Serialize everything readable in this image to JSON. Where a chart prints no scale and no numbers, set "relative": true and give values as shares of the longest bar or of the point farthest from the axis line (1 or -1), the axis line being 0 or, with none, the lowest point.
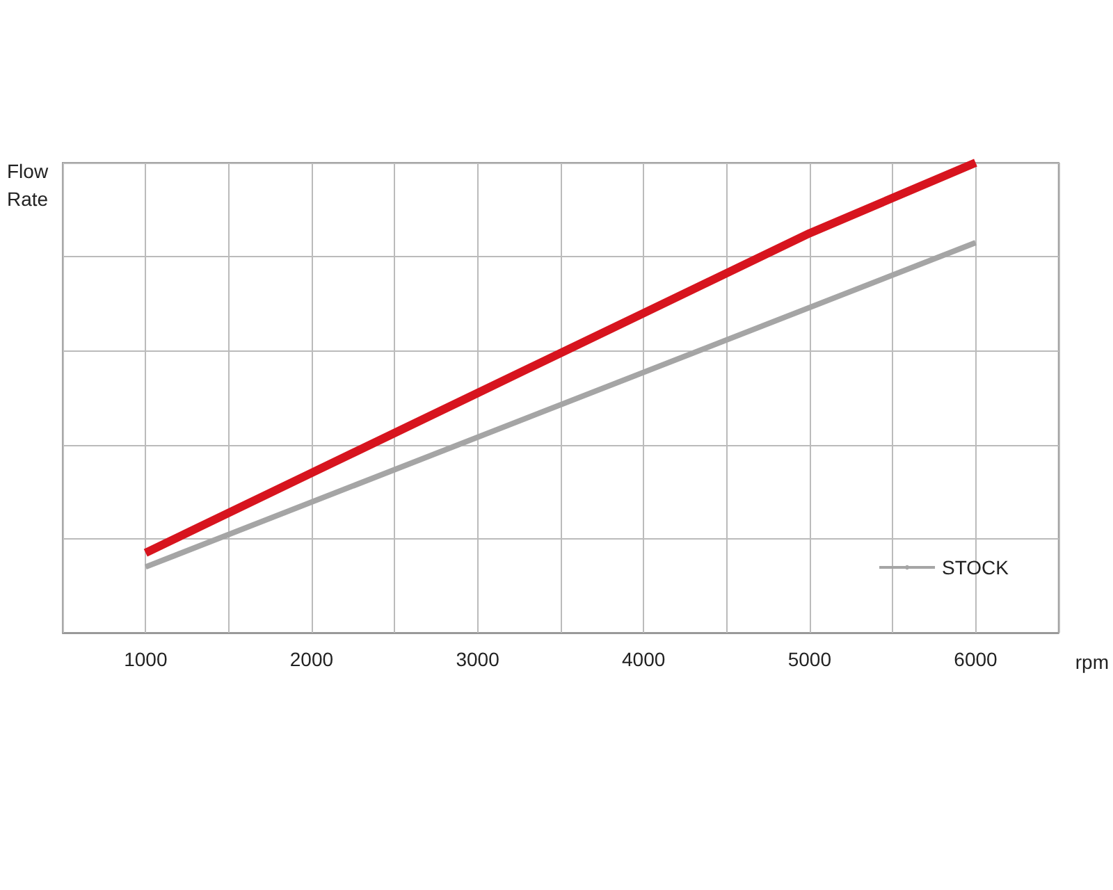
{
  "chart_data": {
    "type": "line",
    "ylabel": "Flow Rate",
    "xlabel": "rpm",
    "relative": true,
    "xlim": [
      500,
      6500
    ],
    "xticks": [
      {
        "value": 500,
        "label": null
      },
      1000,
      {
        "value": 1500,
        "label": null
      },
      2000,
      {
        "value": 2500,
        "label": null
      },
      3000,
      {
        "value": 3500,
        "label": null
      },
      4000,
      {
        "value": 4500,
        "label": null
      },
      5000,
      {
        "value": 5500,
        "label": null
      },
      6000,
      {
        "value": 6500,
        "label": null
      }
    ],
    "series": [
      {
        "color": "#d7141e",
        "x": [
          1000,
          2000,
          3000,
          4000,
          5000,
          6000
        ],
        "values": [
          0.17,
          0.34,
          0.51,
          0.68,
          0.85,
          1.0
        ]
      },
      {
        "name": "STOCK",
        "color": "#a5a5a5",
        "x": [
          1000,
          6000
        ],
        "values": [
          0.14,
          0.83
        ]
      }
    ],
    "grid": true,
    "legend": "bottom right",
    "marker": "none",
    "line_style": "solid"
  }
}
